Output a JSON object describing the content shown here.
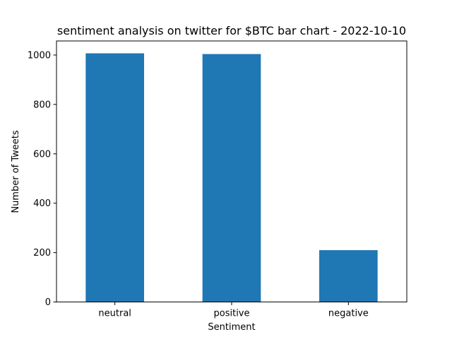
{
  "chart_data": {
    "type": "bar",
    "title": "sentiment analysis on twitter for $BTC bar chart - 2022-10-10",
    "xlabel": "Sentiment",
    "ylabel": "Number of Tweets",
    "categories": [
      "neutral",
      "positive",
      "negative"
    ],
    "values": [
      1007,
      1004,
      210
    ],
    "ylim": [
      0,
      1057
    ],
    "yticks": [
      0,
      200,
      400,
      600,
      800,
      1000
    ],
    "grid": false,
    "legend": "none",
    "bar_color": "#1f77b4"
  }
}
